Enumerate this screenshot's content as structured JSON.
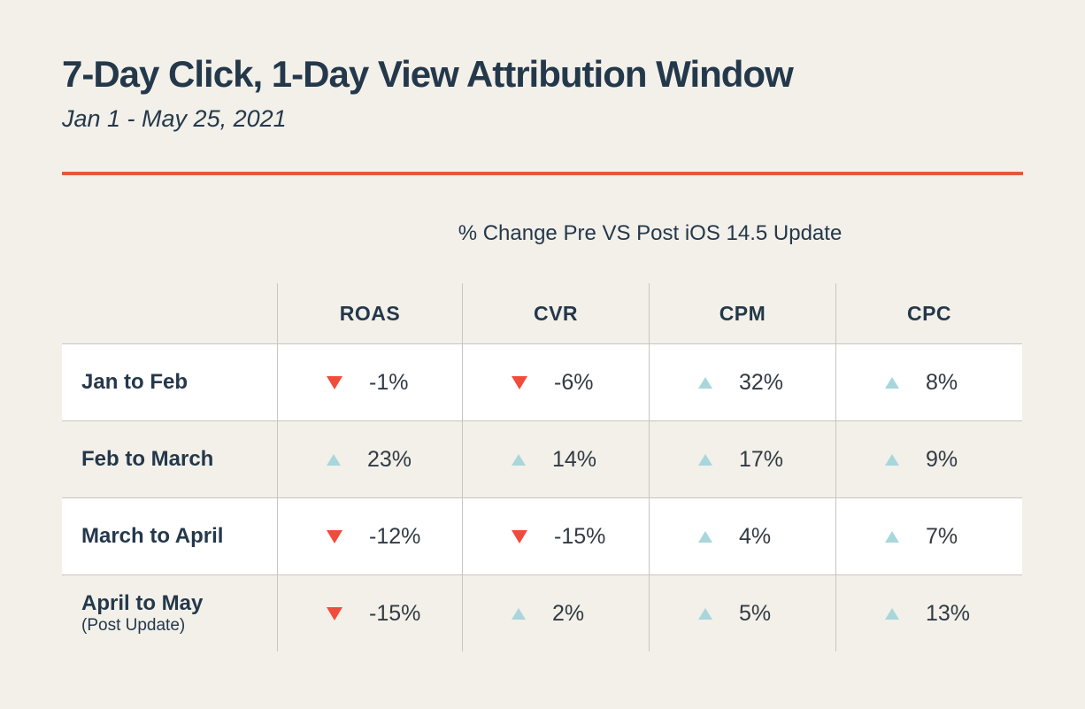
{
  "page": {
    "title": "7-Day Click, 1-Day View Attribution Window",
    "subtitle": "Jan 1 - May 25, 2021",
    "section_heading": "% Change Pre VS Post iOS 14.5 Update"
  },
  "colors": {
    "background": "#f2f0e9",
    "heading_navy": "#24384b",
    "value_text": "#323a43",
    "divider_orange": "#e05941",
    "triangle_down_red": "#f04c3c",
    "triangle_up_teal": "#a9d6db",
    "grid_line": "#c8c6c1",
    "row_highlight_white": "#ffffff"
  },
  "table": {
    "columns": [
      "ROAS",
      "CVR",
      "CPM",
      "CPC"
    ],
    "rows": [
      {
        "label": "Jan to Feb",
        "cells": [
          {
            "dir": "down",
            "value": "-1%"
          },
          {
            "dir": "down",
            "value": "-6%"
          },
          {
            "dir": "up",
            "value": "32%"
          },
          {
            "dir": "up",
            "value": "8%"
          }
        ]
      },
      {
        "label": "Feb to March",
        "cells": [
          {
            "dir": "up",
            "value": "23%"
          },
          {
            "dir": "up",
            "value": "14%"
          },
          {
            "dir": "up",
            "value": "17%"
          },
          {
            "dir": "up",
            "value": "9%"
          }
        ]
      },
      {
        "label": "March to April",
        "cells": [
          {
            "dir": "down",
            "value": "-12%"
          },
          {
            "dir": "down",
            "value": "-15%"
          },
          {
            "dir": "up",
            "value": "4%"
          },
          {
            "dir": "up",
            "value": "7%"
          }
        ]
      },
      {
        "label": "April to May",
        "sublabel": "(Post Update)",
        "cells": [
          {
            "dir": "down",
            "value": "-15%"
          },
          {
            "dir": "up",
            "value": "2%"
          },
          {
            "dir": "up",
            "value": "5%"
          },
          {
            "dir": "up",
            "value": "13%"
          }
        ]
      }
    ]
  },
  "chart_data": {
    "type": "table",
    "title": "7-Day Click, 1-Day View Attribution Window",
    "subtitle": "Jan 1 - May 25, 2021",
    "section_heading": "% Change Pre VS Post iOS 14.5 Update",
    "columns": [
      "ROAS",
      "CVR",
      "CPM",
      "CPC"
    ],
    "row_labels": [
      "Jan to Feb",
      "Feb to March",
      "March to April",
      "April to May (Post Update)"
    ],
    "values_pct_change": [
      [
        -1,
        -6,
        32,
        8
      ],
      [
        23,
        14,
        17,
        9
      ],
      [
        -12,
        -15,
        4,
        7
      ],
      [
        -15,
        2,
        5,
        13
      ]
    ]
  }
}
